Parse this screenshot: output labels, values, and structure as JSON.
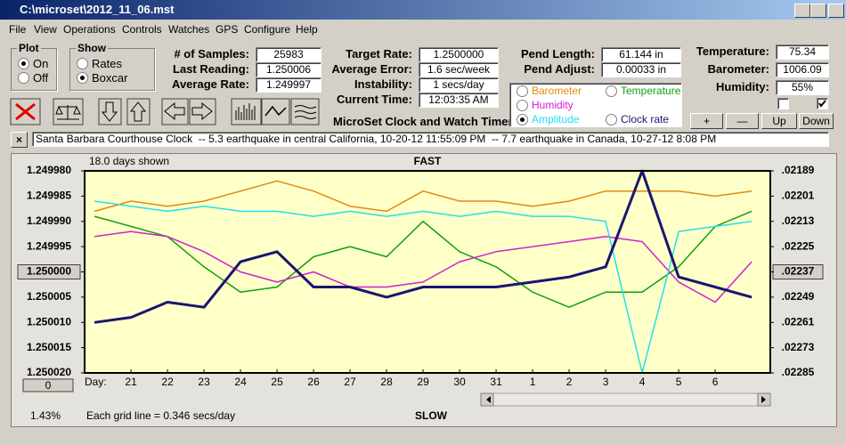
{
  "window": {
    "title": "C:\\microset\\2012_11_06.mst"
  },
  "menu": [
    "File",
    "View",
    "Operations",
    "Controls",
    "Watches",
    "GPS",
    "Configure",
    "Help"
  ],
  "plot_group": {
    "title": "Plot",
    "options": [
      "On",
      "Off"
    ],
    "selected": 0
  },
  "show_group": {
    "title": "Show",
    "options": [
      "Rates",
      "Boxcar"
    ],
    "selected": 1
  },
  "readouts_1": [
    {
      "label": "# of Samples:",
      "value": "25983"
    },
    {
      "label": "Last Reading:",
      "value": "1.250006"
    },
    {
      "label": "Average Rate:",
      "value": "1.249997"
    }
  ],
  "readouts_2": [
    {
      "label": "Target Rate:",
      "value": "1.2500000"
    },
    {
      "label": "Average Error:",
      "value": "1.6 sec/week"
    },
    {
      "label": "Instability:",
      "value": "1 secs/day"
    },
    {
      "label": "Current Time:",
      "value": "12:03:35 AM"
    }
  ],
  "readouts_3": [
    {
      "label": "Pend Length:",
      "value": "61.144 in"
    },
    {
      "label": "Pend Adjust:",
      "value": "0.00033 in"
    }
  ],
  "readouts_4": [
    {
      "label": "Temperature:",
      "value": "75.34"
    },
    {
      "label": "Barometer:",
      "value": "1006.09"
    },
    {
      "label": "Humidity:",
      "value": "55%"
    }
  ],
  "app_title": "MicroSet Clock and Watch Timer",
  "buttons": [
    "+",
    "—",
    "Up",
    "Down"
  ],
  "ticker": "Santa Barbara Courthouse Clock  -- 5.3 earthquake in central California, 10-20-12 11:55:09 PM  -- 7.7 earthquake in Canada, 10-27-12 8:08 PM",
  "chart_data": {
    "type": "line",
    "days_shown": "18.0 days shown",
    "top_label": "FAST",
    "bottom_label": "SLOW",
    "x_label": "Day:",
    "footnote": "Each grid line = 0.346 secs/day",
    "percent": "1.43%",
    "scroll_value": "0",
    "x": [
      20,
      21,
      22,
      23,
      24,
      25,
      26,
      27,
      28,
      29,
      30,
      31,
      32,
      33,
      34,
      35,
      36,
      37,
      38
    ],
    "xlim": [
      19.73,
      38.51
    ],
    "xticks": [
      21,
      22,
      23,
      24,
      25,
      26,
      27,
      28,
      29,
      30,
      31,
      {
        "value": 32,
        "label": "1"
      },
      {
        "value": 33,
        "label": "2"
      },
      {
        "value": 34,
        "label": "3"
      },
      {
        "value": 35,
        "label": "4"
      },
      {
        "value": 36,
        "label": "5"
      },
      {
        "value": 37,
        "label": "6"
      }
    ],
    "ylim": [
      1.24998,
      1.25002
    ],
    "y_inverted": true,
    "yticks": [
      {
        "value": 1.24998,
        "label": "1.249980"
      },
      1.249985,
      {
        "value": 1.24999,
        "label": "1.249990"
      },
      1.249995,
      {
        "value": 1.25,
        "label": "1.250000"
      },
      1.250005,
      {
        "value": 1.25001,
        "label": "1.250010"
      },
      1.250015,
      {
        "value": 1.25002,
        "label": "1.250020"
      }
    ],
    "y2lim": [
      0.02189,
      0.02285
    ],
    "y2_inverted": true,
    "y2ticks": [
      {
        "value": 0.02189,
        "label": ".02189"
      },
      {
        "value": 0.02201,
        "label": ".02201"
      },
      {
        "value": 0.02213,
        "label": ".02213"
      },
      {
        "value": 0.02225,
        "label": ".02225"
      },
      {
        "value": 0.02237,
        "label": ".02237"
      },
      {
        "value": 0.02249,
        "label": ".02249"
      },
      {
        "value": 0.02261,
        "label": ".02261"
      },
      {
        "value": 0.02273,
        "label": ".02273"
      },
      {
        "value": 0.02285,
        "label": ".02285"
      }
    ],
    "grid": false,
    "selected_series": 3,
    "series": [
      {
        "name": "Barometer",
        "color": "#e08a10",
        "values": [
          1.249988,
          1.249986,
          1.249987,
          1.249986,
          1.249984,
          1.249982,
          1.249984,
          1.249987,
          1.249988,
          1.249984,
          1.249986,
          1.249986,
          1.249987,
          1.249986,
          1.249984,
          1.249984,
          1.249984,
          1.249985,
          1.249984
        ]
      },
      {
        "name": "Temperature",
        "color": "#10a010",
        "values": [
          1.249989,
          1.249991,
          1.249993,
          1.249999,
          1.250004,
          1.250003,
          1.249997,
          1.249995,
          1.249997,
          1.24999,
          1.249996,
          1.249999,
          1.250004,
          1.250007,
          1.250004,
          1.250004,
          1.249999,
          1.249991,
          1.249988
        ]
      },
      {
        "name": "Humidity",
        "color": "#d020d0",
        "values": [
          1.249993,
          1.249992,
          1.249993,
          1.249996,
          1.25,
          1.250002,
          1.25,
          1.250003,
          1.250003,
          1.250002,
          1.249998,
          1.249996,
          1.249995,
          1.249994,
          1.249993,
          1.249994,
          1.250002,
          1.250006,
          1.249998
        ]
      },
      {
        "name": "Amplitude",
        "color": "#20e0f0",
        "values": [
          1.249986,
          1.249987,
          1.249988,
          1.249987,
          1.249988,
          1.249988,
          1.249989,
          1.249988,
          1.249989,
          1.249988,
          1.249989,
          1.249988,
          1.249989,
          1.249989,
          1.24999,
          1.25002,
          1.249992,
          1.249991,
          1.24999
        ]
      },
      {
        "name": "Clock rate",
        "color": "#1a1670",
        "values": [
          1.25001,
          1.250009,
          1.250006,
          1.250007,
          1.249998,
          1.249996,
          1.250003,
          1.250003,
          1.250005,
          1.250003,
          1.250003,
          1.250003,
          1.250002,
          1.250001,
          1.249999,
          1.24998,
          1.250001,
          1.250003,
          1.250005
        ]
      }
    ]
  }
}
